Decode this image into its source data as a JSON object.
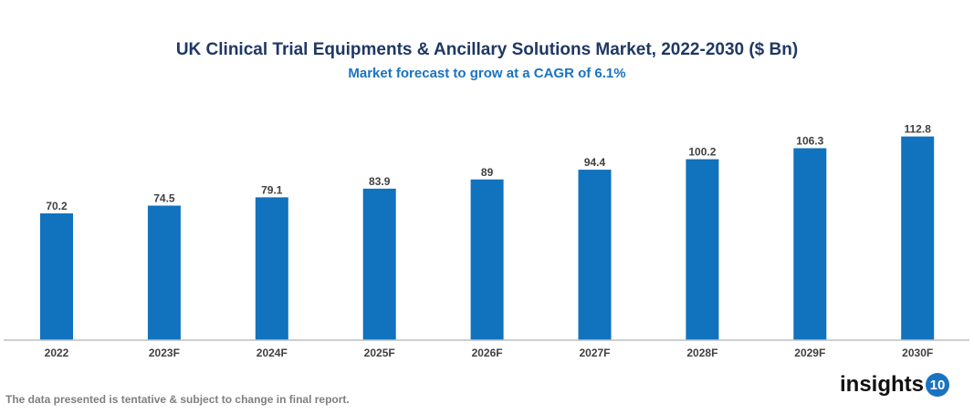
{
  "chart_data": {
    "type": "bar",
    "title": "UK Clinical Trial Equipments & Ancillary Solutions Market, 2022-2030 ($ Bn)",
    "subtitle": "Market forecast to grow at a CAGR of 6.1%",
    "categories": [
      "2022",
      "2023F",
      "2024F",
      "2025F",
      "2026F",
      "2027F",
      "2028F",
      "2029F",
      "2030F"
    ],
    "values": [
      70.2,
      74.5,
      79.1,
      83.9,
      89,
      94.4,
      100.2,
      106.3,
      112.8
    ],
    "labels": [
      "70.2",
      "74.5",
      "79.1",
      "83.9",
      "89",
      "94.4",
      "100.2",
      "106.3",
      "112.8"
    ],
    "xlabel": "",
    "ylabel": "",
    "ylim": [
      0,
      120
    ],
    "grid": false,
    "legend": "none",
    "bar_color": "#1172bd"
  },
  "footnote": "The data presented is tentative & subject to change in final report.",
  "logo": {
    "text": "insights",
    "badge": "10"
  }
}
